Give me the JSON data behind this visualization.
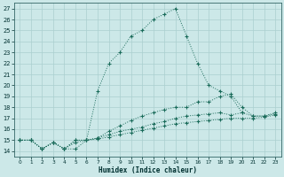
{
  "xlabel": "Humidex (Indice chaleur)",
  "bg_color": "#cce8e8",
  "line_color": "#1a6b5a",
  "grid_color": "#aacfcf",
  "xlim": [
    -0.5,
    23.5
  ],
  "ylim": [
    13.5,
    27.5
  ],
  "xticks": [
    0,
    1,
    2,
    3,
    4,
    5,
    6,
    7,
    8,
    9,
    10,
    11,
    12,
    13,
    14,
    15,
    16,
    17,
    18,
    19,
    20,
    21,
    22,
    23
  ],
  "yticks": [
    14,
    15,
    16,
    17,
    18,
    19,
    20,
    21,
    22,
    23,
    24,
    25,
    26,
    27
  ],
  "lines": [
    {
      "x": [
        0,
        1,
        2,
        3,
        4,
        5,
        6,
        7,
        8,
        9,
        10,
        11,
        12,
        13,
        14,
        15,
        16,
        17,
        18,
        19,
        20
      ],
      "y": [
        15,
        15,
        14.2,
        14.8,
        14.2,
        14.2,
        15.0,
        19.5,
        22.0,
        23.0,
        24.5,
        25.0,
        26.0,
        26.5,
        27.0,
        24.5,
        22.0,
        20.0,
        19.5,
        19.0,
        17.5
      ]
    },
    {
      "x": [
        0,
        1,
        2,
        3,
        4,
        5,
        6,
        7,
        8,
        9,
        10,
        11,
        12,
        13,
        14,
        15,
        16,
        17,
        18,
        19,
        20,
        21,
        22,
        23
      ],
      "y": [
        15,
        15,
        14.2,
        14.8,
        14.2,
        15.0,
        15.0,
        15.2,
        15.8,
        16.3,
        16.8,
        17.2,
        17.5,
        17.8,
        18.0,
        18.0,
        18.5,
        18.5,
        19.0,
        19.2,
        18.0,
        17.2,
        17.2,
        17.5
      ]
    },
    {
      "x": [
        0,
        1,
        2,
        3,
        4,
        5,
        6,
        7,
        8,
        9,
        10,
        11,
        12,
        13,
        14,
        15,
        16,
        17,
        18,
        19,
        20,
        21,
        22,
        23
      ],
      "y": [
        15,
        15,
        14.2,
        14.8,
        14.2,
        15.0,
        15.0,
        15.2,
        15.5,
        15.8,
        16.0,
        16.2,
        16.5,
        16.7,
        17.0,
        17.2,
        17.3,
        17.4,
        17.5,
        17.3,
        17.5,
        17.2,
        17.2,
        17.4
      ]
    },
    {
      "x": [
        0,
        1,
        2,
        3,
        4,
        5,
        6,
        7,
        8,
        9,
        10,
        11,
        12,
        13,
        14,
        15,
        16,
        17,
        18,
        19,
        20,
        21,
        22,
        23
      ],
      "y": [
        15,
        15,
        14.2,
        14.8,
        14.2,
        14.8,
        15.0,
        15.1,
        15.3,
        15.5,
        15.7,
        15.9,
        16.1,
        16.3,
        16.5,
        16.6,
        16.7,
        16.8,
        16.9,
        17.0,
        17.0,
        17.0,
        17.1,
        17.3
      ]
    }
  ]
}
